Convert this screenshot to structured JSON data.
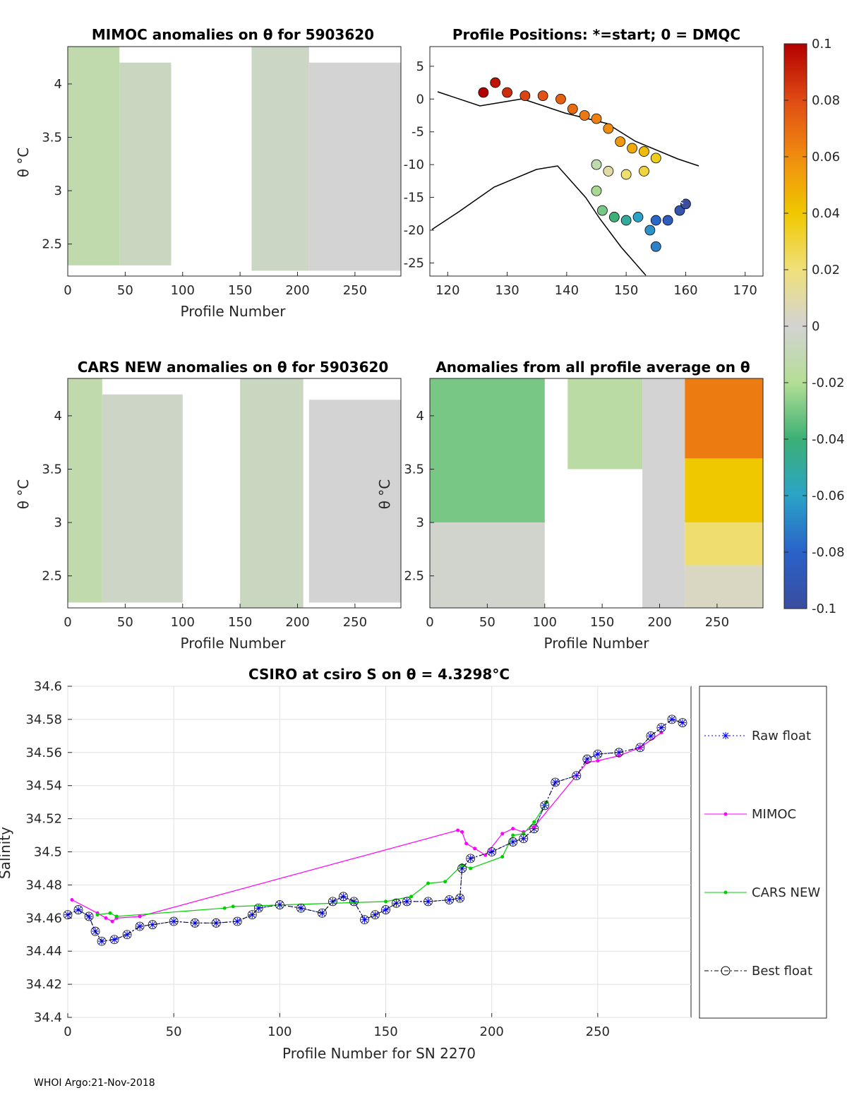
{
  "footer": "WHOI Argo:21-Nov-2018",
  "colorbar": {
    "ticks": [
      "0.1",
      "0.08",
      "0.06",
      "0.04",
      "0.02",
      "0",
      "-0.02",
      "-0.04",
      "-0.06",
      "-0.08",
      "-0.1"
    ]
  },
  "chart_data": [
    {
      "id": "mimoc",
      "type": "heatmap",
      "title": "MIMOC anomalies on θ  for 5903620",
      "xlabel": "Profile Number",
      "ylabel": "θ °C",
      "xlim": [
        0,
        290
      ],
      "ylim": [
        2.2,
        4.35
      ],
      "xticks": [
        0,
        50,
        100,
        150,
        200,
        250
      ],
      "yticks": [
        2.5,
        3,
        3.5,
        4
      ],
      "blocks": [
        {
          "x": [
            0,
            45
          ],
          "y": [
            2.3,
            4.35
          ],
          "value": -0.012
        },
        {
          "x": [
            45,
            90
          ],
          "y": [
            2.3,
            4.2
          ],
          "value": -0.006
        },
        {
          "x": [
            160,
            210
          ],
          "y": [
            2.25,
            4.35
          ],
          "value": -0.005
        },
        {
          "x": [
            210,
            290
          ],
          "y": [
            2.25,
            4.2
          ],
          "value": 0.0
        }
      ]
    },
    {
      "id": "positions",
      "type": "scatter",
      "title": "Profile Positions: *=start; 0 = DMQC",
      "xlim": [
        117,
        173
      ],
      "ylim": [
        -27,
        8
      ],
      "xticks": [
        120,
        130,
        140,
        150,
        160,
        170
      ],
      "yticks": [
        5,
        0,
        -5,
        -10,
        -15,
        -20,
        -25
      ],
      "start": {
        "lon": 159,
        "lat": -16
      },
      "track": [
        {
          "lon": 126,
          "lat": 1.0,
          "value": 0.1
        },
        {
          "lon": 128,
          "lat": 2.5,
          "value": 0.095
        },
        {
          "lon": 130,
          "lat": 1.0,
          "value": 0.088
        },
        {
          "lon": 133,
          "lat": 0.5,
          "value": 0.082
        },
        {
          "lon": 136,
          "lat": 0.5,
          "value": 0.078
        },
        {
          "lon": 139,
          "lat": 0.0,
          "value": 0.074
        },
        {
          "lon": 141,
          "lat": -1.5,
          "value": 0.07
        },
        {
          "lon": 143,
          "lat": -2.5,
          "value": 0.066
        },
        {
          "lon": 145,
          "lat": -3.0,
          "value": 0.063
        },
        {
          "lon": 147,
          "lat": -4.5,
          "value": 0.06
        },
        {
          "lon": 149,
          "lat": -6.5,
          "value": 0.056
        },
        {
          "lon": 151,
          "lat": -7.5,
          "value": 0.05
        },
        {
          "lon": 153,
          "lat": -8.0,
          "value": 0.044
        },
        {
          "lon": 155,
          "lat": -9.0,
          "value": 0.036
        },
        {
          "lon": 153,
          "lat": -11.0,
          "value": 0.03
        },
        {
          "lon": 150,
          "lat": -11.5,
          "value": 0.022
        },
        {
          "lon": 147,
          "lat": -11.0,
          "value": 0.01
        },
        {
          "lon": 145,
          "lat": -10.0,
          "value": -0.012
        },
        {
          "lon": 145,
          "lat": -14.0,
          "value": -0.022
        },
        {
          "lon": 146,
          "lat": -17.0,
          "value": -0.03
        },
        {
          "lon": 148,
          "lat": -18.0,
          "value": -0.04
        },
        {
          "lon": 150,
          "lat": -18.5,
          "value": -0.05
        },
        {
          "lon": 152,
          "lat": -18.0,
          "value": -0.06
        },
        {
          "lon": 154,
          "lat": -20.0,
          "value": -0.065
        },
        {
          "lon": 155,
          "lat": -22.5,
          "value": -0.07
        },
        {
          "lon": 155,
          "lat": -18.5,
          "value": -0.078
        },
        {
          "lon": 157,
          "lat": -18.5,
          "value": -0.085
        },
        {
          "lon": 159,
          "lat": -17.0,
          "value": -0.093
        },
        {
          "lon": 160,
          "lat": -16.0,
          "value": -0.1
        }
      ]
    },
    {
      "id": "cars",
      "type": "heatmap",
      "title": "CARS NEW anomalies on θ for 5903620",
      "xlabel": "Profile Number",
      "ylabel": "θ °C",
      "xlim": [
        0,
        290
      ],
      "ylim": [
        2.2,
        4.35
      ],
      "xticks": [
        0,
        50,
        100,
        150,
        200,
        250
      ],
      "yticks": [
        2.5,
        3,
        3.5,
        4
      ],
      "blocks": [
        {
          "x": [
            0,
            30
          ],
          "y": [
            2.25,
            4.35
          ],
          "value": -0.012
        },
        {
          "x": [
            30,
            100
          ],
          "y": [
            2.25,
            4.2
          ],
          "value": -0.004
        },
        {
          "x": [
            150,
            205
          ],
          "y": [
            2.2,
            4.35
          ],
          "value": -0.006
        },
        {
          "x": [
            210,
            290
          ],
          "y": [
            2.25,
            4.15
          ],
          "value": 0.0
        }
      ]
    },
    {
      "id": "allavg",
      "type": "heatmap",
      "title": "Anomalies from all profile average on θ",
      "xlabel": "Profile Number",
      "ylabel": "θ °C",
      "xlim": [
        0,
        290
      ],
      "ylim": [
        2.2,
        4.35
      ],
      "xticks": [
        0,
        50,
        100,
        150,
        200,
        250
      ],
      "yticks": [
        2.5,
        3,
        3.5,
        4
      ],
      "blocks": [
        {
          "x": [
            0,
            100
          ],
          "y": [
            3.0,
            4.35
          ],
          "value": -0.03
        },
        {
          "x": [
            0,
            100
          ],
          "y": [
            2.2,
            3.0
          ],
          "value": -0.002
        },
        {
          "x": [
            120,
            185
          ],
          "y": [
            3.5,
            4.35
          ],
          "value": -0.015
        },
        {
          "x": [
            185,
            222
          ],
          "y": [
            2.2,
            4.35
          ],
          "value": 0.0
        },
        {
          "x": [
            222,
            290
          ],
          "y": [
            3.6,
            4.35
          ],
          "value": 0.065
        },
        {
          "x": [
            222,
            290
          ],
          "y": [
            3.0,
            3.6
          ],
          "value": 0.04
        },
        {
          "x": [
            222,
            290
          ],
          "y": [
            2.6,
            3.0
          ],
          "value": 0.022
        },
        {
          "x": [
            222,
            290
          ],
          "y": [
            2.2,
            2.6
          ],
          "value": 0.004
        }
      ]
    },
    {
      "id": "salinity",
      "type": "line",
      "title": "CSIRO at csiro S on θ = 4.3298°C",
      "xlabel": "Profile Number for SN 2270",
      "ylabel": "Salinity",
      "xlim": [
        0,
        294
      ],
      "ylim": [
        34.4,
        34.6
      ],
      "xticks": [
        0,
        50,
        100,
        150,
        200,
        250
      ],
      "yticks": [
        34.4,
        34.42,
        34.44,
        34.46,
        34.48,
        34.5,
        34.52,
        34.54,
        34.56,
        34.58,
        34.6
      ],
      "legend": [
        "Raw float",
        "MIMOC",
        "CARS NEW",
        "Best float"
      ],
      "series": [
        {
          "name": "Raw float",
          "color": "#0000ff",
          "points": [
            [
              0,
              34.462
            ],
            [
              5,
              34.465
            ],
            [
              10,
              34.461
            ],
            [
              13,
              34.452
            ],
            [
              16,
              34.446
            ],
            [
              22,
              34.447
            ],
            [
              28,
              34.45
            ],
            [
              34,
              34.455
            ],
            [
              40,
              34.456
            ],
            [
              50,
              34.458
            ],
            [
              60,
              34.457
            ],
            [
              70,
              34.457
            ],
            [
              80,
              34.458
            ],
            [
              87,
              34.462
            ],
            [
              90,
              34.466
            ],
            [
              100,
              34.468
            ],
            [
              110,
              34.466
            ],
            [
              120,
              34.463
            ],
            [
              125,
              34.47
            ],
            [
              130,
              34.473
            ],
            [
              135,
              34.47
            ],
            [
              140,
              34.459
            ],
            [
              145,
              34.462
            ],
            [
              150,
              34.465
            ],
            [
              155,
              34.469
            ],
            [
              160,
              34.47
            ],
            [
              170,
              34.47
            ],
            [
              180,
              34.471
            ],
            [
              185,
              34.472
            ],
            [
              186,
              34.49
            ],
            [
              190,
              34.496
            ],
            [
              200,
              34.5
            ],
            [
              210,
              34.506
            ],
            [
              215,
              34.508
            ],
            [
              220,
              34.514
            ],
            [
              225,
              34.528
            ],
            [
              230,
              34.542
            ],
            [
              240,
              34.546
            ],
            [
              245,
              34.556
            ],
            [
              250,
              34.559
            ],
            [
              260,
              34.56
            ],
            [
              270,
              34.563
            ],
            [
              275,
              34.57
            ],
            [
              280,
              34.575
            ],
            [
              285,
              34.58
            ],
            [
              290,
              34.578
            ]
          ]
        },
        {
          "name": "MIMOC",
          "color": "#ff00ff",
          "points": [
            [
              2,
              34.471
            ],
            [
              14,
              34.463
            ],
            [
              18,
              34.46
            ],
            [
              21,
              34.458
            ],
            [
              23,
              34.46
            ],
            [
              34,
              34.461
            ],
            [
              184,
              34.513
            ],
            [
              186,
              34.512
            ],
            [
              188,
              34.505
            ],
            [
              192,
              34.502
            ],
            [
              197,
              34.498
            ],
            [
              205,
              34.511
            ],
            [
              210,
              34.514
            ],
            [
              215,
              34.512
            ],
            [
              220,
              34.515
            ],
            [
              245,
              34.554
            ],
            [
              250,
              34.555
            ],
            [
              260,
              34.558
            ],
            [
              270,
              34.563
            ],
            [
              280,
              34.572
            ]
          ]
        },
        {
          "name": "CARS NEW",
          "color": "#00d000",
          "points": [
            [
              14,
              34.462
            ],
            [
              20,
              34.463
            ],
            [
              23,
              34.461
            ],
            [
              74,
              34.466
            ],
            [
              78,
              34.467
            ],
            [
              150,
              34.47
            ],
            [
              162,
              34.473
            ],
            [
              170,
              34.481
            ],
            [
              178,
              34.482
            ],
            [
              186,
              34.492
            ],
            [
              190,
              34.49
            ],
            [
              205,
              34.497
            ],
            [
              210,
              34.51
            ],
            [
              215,
              34.511
            ],
            [
              220,
              34.518
            ],
            [
              226,
              34.53
            ]
          ]
        },
        {
          "name": "Best float",
          "color": "#000000",
          "points": [
            [
              0,
              34.462
            ],
            [
              5,
              34.465
            ],
            [
              10,
              34.461
            ],
            [
              13,
              34.452
            ],
            [
              16,
              34.446
            ],
            [
              22,
              34.447
            ],
            [
              28,
              34.45
            ],
            [
              34,
              34.455
            ],
            [
              40,
              34.456
            ],
            [
              50,
              34.458
            ],
            [
              60,
              34.457
            ],
            [
              70,
              34.457
            ],
            [
              80,
              34.458
            ],
            [
              87,
              34.462
            ],
            [
              90,
              34.466
            ],
            [
              100,
              34.468
            ],
            [
              110,
              34.466
            ],
            [
              120,
              34.463
            ],
            [
              125,
              34.47
            ],
            [
              130,
              34.473
            ],
            [
              135,
              34.47
            ],
            [
              140,
              34.459
            ],
            [
              145,
              34.462
            ],
            [
              150,
              34.465
            ],
            [
              155,
              34.469
            ],
            [
              160,
              34.47
            ],
            [
              170,
              34.47
            ],
            [
              180,
              34.471
            ],
            [
              185,
              34.472
            ],
            [
              186,
              34.49
            ],
            [
              190,
              34.496
            ],
            [
              200,
              34.5
            ],
            [
              210,
              34.506
            ],
            [
              215,
              34.508
            ],
            [
              220,
              34.514
            ],
            [
              225,
              34.528
            ],
            [
              230,
              34.542
            ],
            [
              240,
              34.546
            ],
            [
              245,
              34.556
            ],
            [
              250,
              34.559
            ],
            [
              260,
              34.56
            ],
            [
              270,
              34.563
            ],
            [
              275,
              34.57
            ],
            [
              280,
              34.575
            ],
            [
              285,
              34.58
            ],
            [
              290,
              34.578
            ]
          ]
        }
      ]
    }
  ]
}
